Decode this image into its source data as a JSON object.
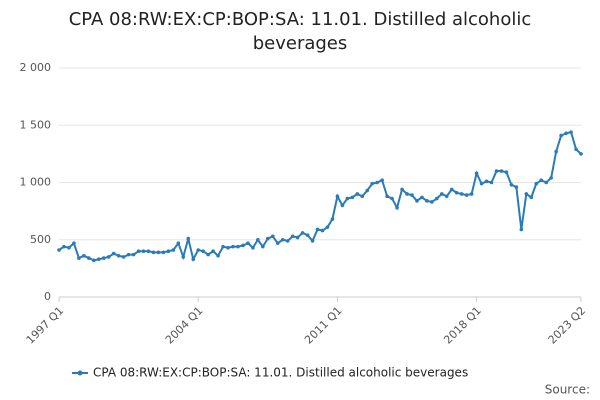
{
  "chart_data": {
    "type": "line",
    "title": "CPA 08:RW:EX:CP:BOP:SA: 11.01. Distilled alcoholic beverages",
    "categories": [
      "1997 Q1",
      null,
      null,
      null,
      null,
      null,
      null,
      null,
      null,
      null,
      null,
      null,
      null,
      null,
      null,
      null,
      null,
      null,
      null,
      null,
      null,
      null,
      null,
      null,
      null,
      null,
      null,
      null,
      "2004 Q1",
      null,
      null,
      null,
      null,
      null,
      null,
      null,
      null,
      null,
      null,
      null,
      null,
      null,
      null,
      null,
      null,
      null,
      null,
      null,
      null,
      null,
      null,
      null,
      null,
      null,
      null,
      null,
      "2011 Q1",
      null,
      null,
      null,
      null,
      null,
      null,
      null,
      null,
      null,
      null,
      null,
      null,
      null,
      null,
      null,
      null,
      null,
      null,
      null,
      null,
      null,
      null,
      null,
      null,
      null,
      null,
      null,
      "2018 Q1",
      null,
      null,
      null,
      null,
      null,
      null,
      null,
      null,
      null,
      null,
      null,
      null,
      null,
      null,
      null,
      null,
      null,
      null,
      null,
      null,
      "2023 Q2"
    ],
    "series": [
      {
        "name": "CPA 08:RW:EX:CP:BOP:SA: 11.01. Distilled alcoholic beverages",
        "color": "#2b7bb9",
        "values": [
          410,
          440,
          430,
          470,
          340,
          360,
          340,
          320,
          330,
          340,
          350,
          380,
          360,
          350,
          370,
          370,
          400,
          400,
          400,
          390,
          390,
          390,
          400,
          410,
          470,
          350,
          510,
          330,
          410,
          400,
          370,
          400,
          360,
          440,
          430,
          440,
          440,
          450,
          470,
          430,
          500,
          440,
          510,
          530,
          470,
          500,
          490,
          530,
          520,
          560,
          540,
          490,
          590,
          580,
          610,
          680,
          880,
          800,
          860,
          870,
          900,
          880,
          930,
          990,
          1000,
          1020,
          880,
          860,
          780,
          940,
          900,
          890,
          840,
          870,
          840,
          830,
          860,
          900,
          880,
          940,
          910,
          900,
          890,
          900,
          1080,
          990,
          1010,
          1000,
          1100,
          1100,
          1090,
          980,
          960,
          590,
          900,
          870,
          990,
          1020,
          1000,
          1040,
          1270,
          1410,
          1430,
          1440,
          1290,
          1250
        ]
      }
    ],
    "ylim": [
      0,
      2000
    ],
    "yticks": [
      0,
      500,
      {
        "value": 1000,
        "label": "1 000"
      },
      {
        "value": 1500,
        "label": "1 500"
      },
      {
        "value": 2000,
        "label": "2 000"
      }
    ],
    "grid": true,
    "source": "Source:"
  }
}
